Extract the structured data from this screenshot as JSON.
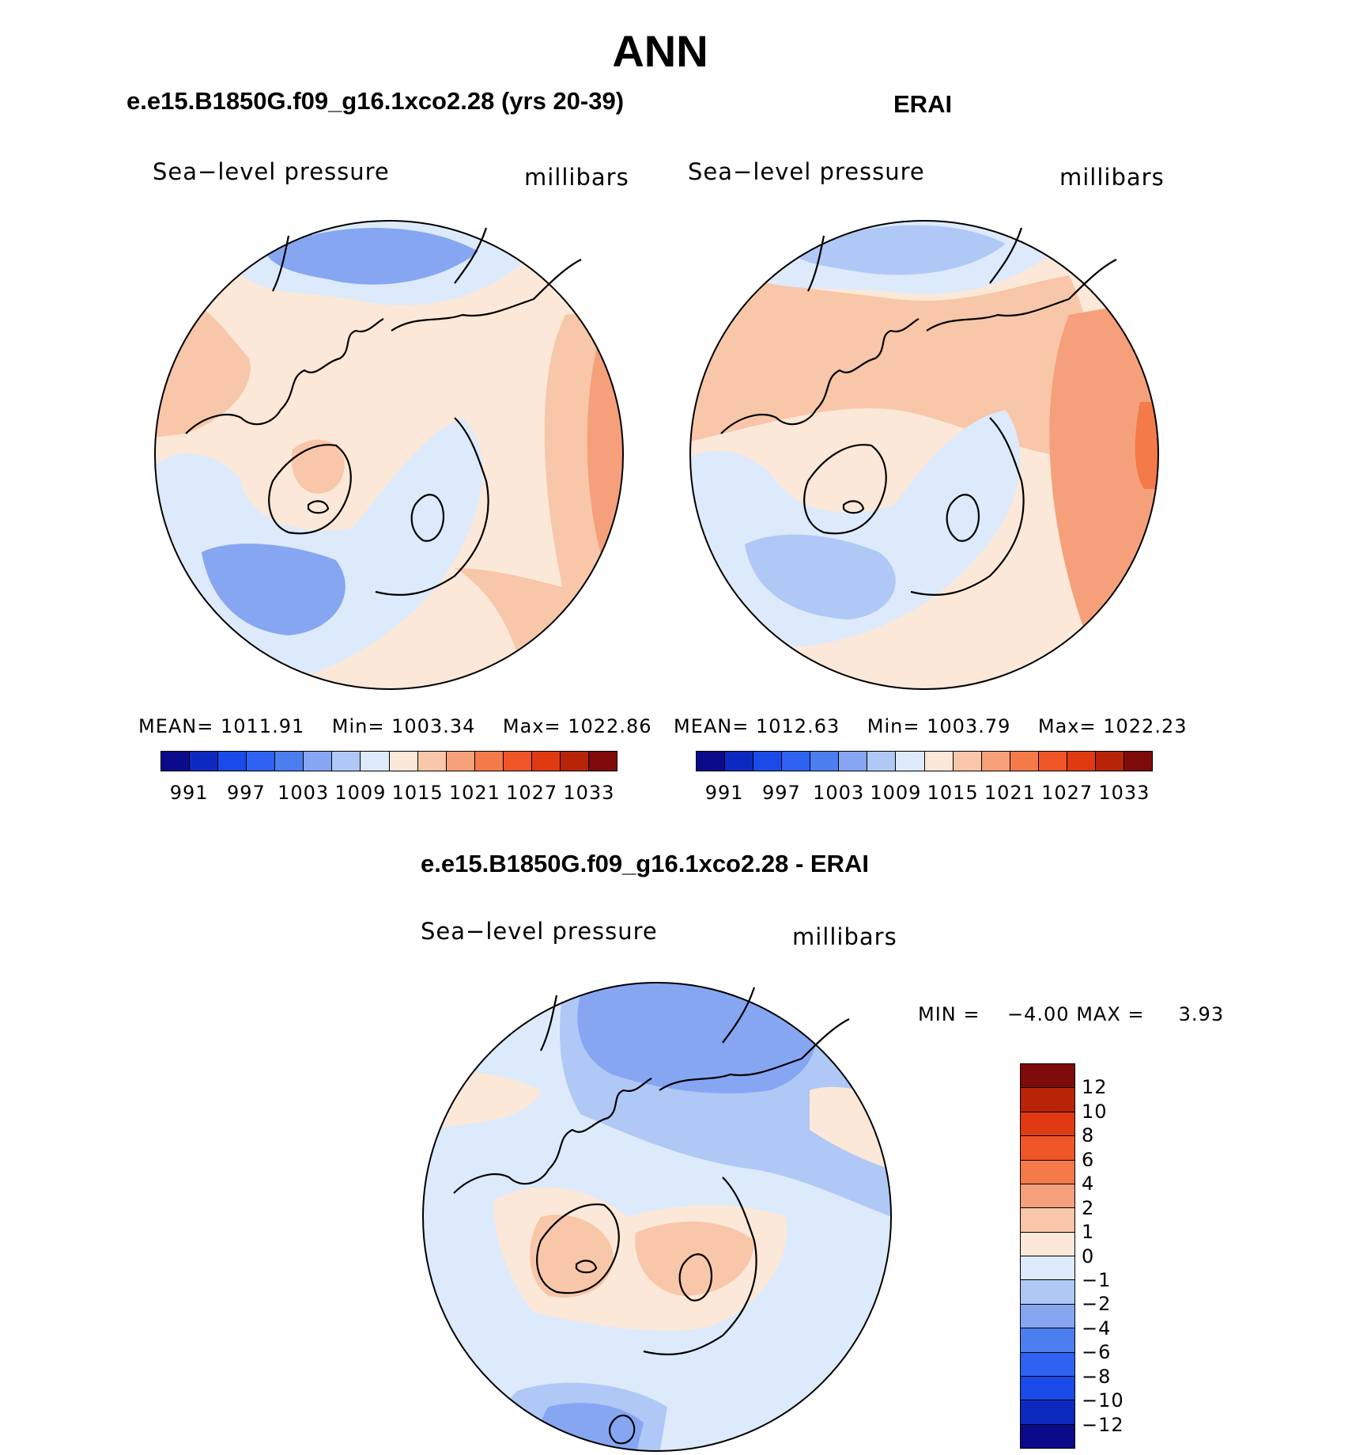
{
  "title": "ANN",
  "panels": {
    "model": {
      "title": "e.e15.B1850G.f09_g16.1xco2.28 (yrs 20-39)",
      "variable": "Sea−level pressure",
      "units": "millibars",
      "stats": {
        "mean_label": "MEAN=",
        "mean": "1011.91",
        "min_label": "Min=",
        "min": "1003.34",
        "max_label": "Max=",
        "max": "1022.86"
      }
    },
    "obs": {
      "title": "ERAI",
      "variable": "Sea−level pressure",
      "units": "millibars",
      "stats": {
        "mean_label": "MEAN=",
        "mean": "1012.63",
        "min_label": "Min=",
        "min": "1003.79",
        "max_label": "Max=",
        "max": "1022.23"
      }
    },
    "diff": {
      "title": "e.e15.B1850G.f09_g16.1xco2.28 - ERAI",
      "variable": "Sea−level pressure",
      "units": "millibars",
      "stats": {
        "min_label": "MIN =",
        "min": "−4.00",
        "max_label": "MAX =",
        "max": "3.93"
      }
    }
  },
  "colorbar_abs": {
    "ticks": [
      "991",
      "997",
      "1003",
      "1009",
      "1015",
      "1021",
      "1027",
      "1033"
    ],
    "colors": [
      "#0a0a8a",
      "#0d2ac0",
      "#1a4ae8",
      "#2e62f2",
      "#4c7eef",
      "#86a6f2",
      "#b0c8f6",
      "#dceafb",
      "#fce8d8",
      "#f8c6a8",
      "#f5a07a",
      "#f47a4a",
      "#f05528",
      "#e03a12",
      "#b82408",
      "#7e0a0a"
    ]
  },
  "colorbar_diff": {
    "ticks": [
      "12",
      "10",
      "8",
      "6",
      "4",
      "2",
      "1",
      "0",
      "−1",
      "−2",
      "−4",
      "−6",
      "−8",
      "−10",
      "−12"
    ],
    "colors": [
      "#7e0a0a",
      "#b82408",
      "#e03a12",
      "#f05528",
      "#f47a4a",
      "#f5a07a",
      "#f8c6a8",
      "#fce8d8",
      "#dceafb",
      "#b0c8f6",
      "#86a6f2",
      "#4c7eef",
      "#2e62f2",
      "#1a4ae8",
      "#0d2ac0",
      "#0a0a8a"
    ]
  },
  "legend_colors": {
    "land_outline": "#000000",
    "near_mean_positive": "#fce8d8",
    "near_mean_negative": "#dceafb"
  }
}
